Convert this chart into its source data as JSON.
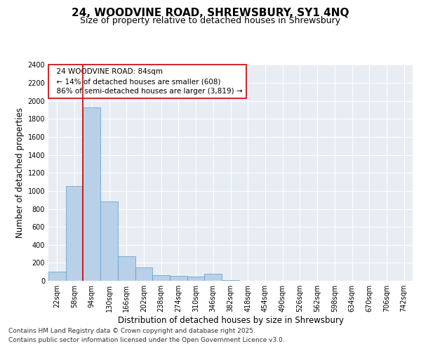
{
  "title_line1": "24, WOODVINE ROAD, SHREWSBURY, SY1 4NQ",
  "title_line2": "Size of property relative to detached houses in Shrewsbury",
  "xlabel": "Distribution of detached houses by size in Shrewsbury",
  "ylabel": "Number of detached properties",
  "bin_labels": [
    "22sqm",
    "58sqm",
    "94sqm",
    "130sqm",
    "166sqm",
    "202sqm",
    "238sqm",
    "274sqm",
    "310sqm",
    "346sqm",
    "382sqm",
    "418sqm",
    "454sqm",
    "490sqm",
    "526sqm",
    "562sqm",
    "598sqm",
    "634sqm",
    "670sqm",
    "706sqm",
    "742sqm"
  ],
  "bar_values": [
    100,
    1050,
    1930,
    880,
    270,
    150,
    65,
    55,
    45,
    75,
    5,
    0,
    0,
    0,
    0,
    0,
    0,
    0,
    0,
    0,
    0
  ],
  "bar_color": "#b8d0e8",
  "bar_edge_color": "#5a9ac8",
  "background_color": "#e8edf4",
  "grid_color": "#ffffff",
  "vline_color": "#cc0000",
  "annotation_text": "  24 WOODVINE ROAD: 84sqm\n  ← 14% of detached houses are smaller (608)\n  86% of semi-detached houses are larger (3,819) →",
  "annotation_box_color": "#ffffff",
  "annotation_box_edge": "#cc0000",
  "ylim": [
    0,
    2400
  ],
  "yticks": [
    0,
    200,
    400,
    600,
    800,
    1000,
    1200,
    1400,
    1600,
    1800,
    2000,
    2200,
    2400
  ],
  "footer_line1": "Contains HM Land Registry data © Crown copyright and database right 2025.",
  "footer_line2": "Contains public sector information licensed under the Open Government Licence v3.0.",
  "title_fontsize": 11,
  "subtitle_fontsize": 9,
  "axis_label_fontsize": 8.5,
  "tick_fontsize": 7,
  "annotation_fontsize": 7.5,
  "footer_fontsize": 6.5
}
